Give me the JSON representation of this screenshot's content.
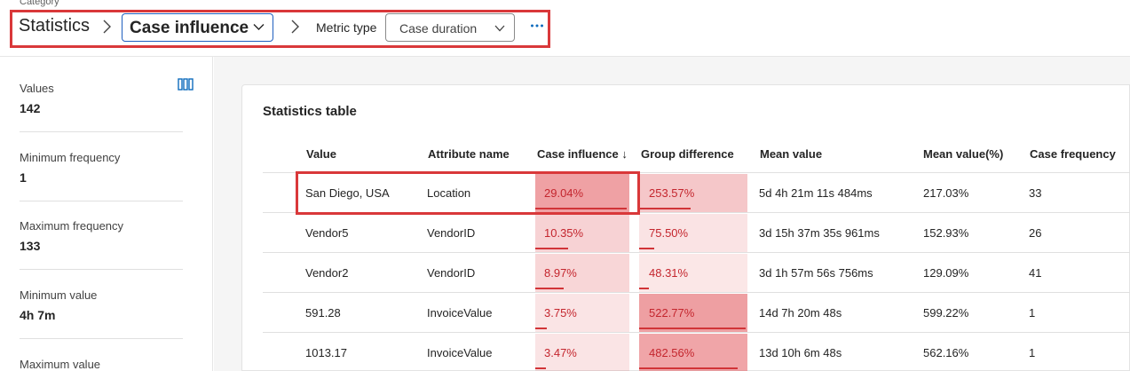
{
  "header": {
    "category_label": "Category",
    "breadcrumb_root": "Statistics",
    "selected_category": "Case influence",
    "metric_type_label": "Metric type",
    "metric_type_value": "Case duration",
    "more_icon": "more-horizontal-icon"
  },
  "sidebar": {
    "columns_icon": "column-chart-icon",
    "stats": [
      {
        "label": "Values",
        "value": "142"
      },
      {
        "label": "Minimum frequency",
        "value": "1"
      },
      {
        "label": "Maximum frequency",
        "value": "133"
      },
      {
        "label": "Minimum value",
        "value": "4h 7m"
      },
      {
        "label": "Maximum value",
        "value": ""
      }
    ]
  },
  "table": {
    "title": "Statistics table",
    "columns": [
      "Value",
      "Attribute name",
      "Case influence ↓",
      "Group difference",
      "Mean value",
      "Mean value(%)",
      "Case frequency"
    ],
    "rows": [
      {
        "value": "San Diego, USA",
        "attribute": "Location",
        "case_influence": "29.04%",
        "case_influence_pct": 29.04,
        "group_difference": "253.57%",
        "group_difference_pct": 253.57,
        "mean_value": "5d 4h 21m 11s 484ms",
        "mean_value_pct": "217.03%",
        "case_frequency": "33"
      },
      {
        "value": "Vendor5",
        "attribute": "VendorID",
        "case_influence": "10.35%",
        "case_influence_pct": 10.35,
        "group_difference": "75.50%",
        "group_difference_pct": 75.5,
        "mean_value": "3d 15h 37m 35s 961ms",
        "mean_value_pct": "152.93%",
        "case_frequency": "26"
      },
      {
        "value": "Vendor2",
        "attribute": "VendorID",
        "case_influence": "8.97%",
        "case_influence_pct": 8.97,
        "group_difference": "48.31%",
        "group_difference_pct": 48.31,
        "mean_value": "3d 1h 57m 56s 756ms",
        "mean_value_pct": "129.09%",
        "case_frequency": "41"
      },
      {
        "value": "591.28",
        "attribute": "InvoiceValue",
        "case_influence": "3.75%",
        "case_influence_pct": 3.75,
        "group_difference": "522.77%",
        "group_difference_pct": 522.77,
        "mean_value": "14d 7h 20m 48s",
        "mean_value_pct": "599.22%",
        "case_frequency": "1"
      },
      {
        "value": "1013.17",
        "attribute": "InvoiceValue",
        "case_influence": "3.47%",
        "case_influence_pct": 3.47,
        "group_difference": "482.56%",
        "group_difference_pct": 482.56,
        "mean_value": "13d 10h 6m 48s",
        "mean_value_pct": "562.16%",
        "case_frequency": "1"
      }
    ]
  },
  "colors": {
    "accent_red": "#d13438",
    "highlight_border": "#d9383a",
    "select_border": "#1f5fbf",
    "link_blue": "#0f6cbd"
  }
}
